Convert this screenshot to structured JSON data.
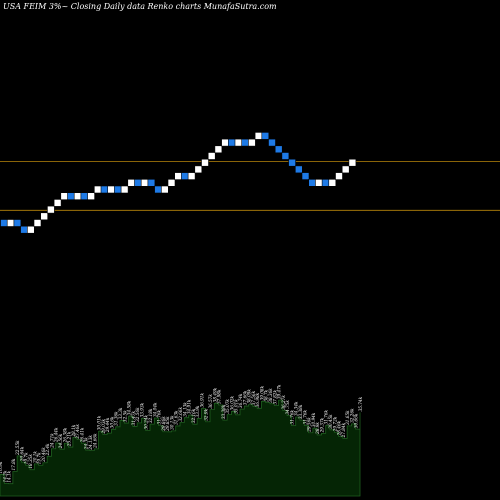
{
  "header": {
    "title": "USA FEIM 3%~  Closing Daily data  Renko  charts MunafaSutra.com"
  },
  "colors": {
    "background": "#000000",
    "up_brick": "#ffffff",
    "down_brick": "#1e7ae6",
    "brick_border": "#000000",
    "level_line": "#b8860b",
    "volume_fill": "#052505",
    "volume_line": "#1f5f1f",
    "label": "#ffffff"
  },
  "chart_data": {
    "type": "renko",
    "title": "USA FEIM 3%~  Closing Daily data  Renko  charts MunafaSutra.com",
    "bricks": [
      "down",
      "up",
      "down",
      "down",
      "up",
      "up",
      "up",
      "up",
      "up",
      "up",
      "down",
      "up",
      "down",
      "up",
      "up",
      "down",
      "up",
      "down",
      "up",
      "up",
      "down",
      "up",
      "down",
      "down",
      "up",
      "up",
      "up",
      "down",
      "up",
      "up",
      "up",
      "up",
      "up",
      "up",
      "down",
      "up",
      "down",
      "up",
      "up",
      "down",
      "down",
      "down",
      "down",
      "down",
      "down",
      "down",
      "down",
      "up",
      "down",
      "up",
      "up",
      "up",
      "up"
    ],
    "levels": [
      0.35,
      0.32
    ],
    "volume_labels": [
      "16.9k",
      "14.2k",
      "14.1k",
      "17.8k",
      "22.55k",
      "20.64k",
      "19.7k",
      "18.35k",
      "20.1k",
      "19.7k",
      "20.46k",
      "22.4k",
      "24.71k",
      "26.44k",
      "24.56k",
      "26.38k",
      "25.21k",
      "28.1k",
      "27.46k",
      "26.41k",
      "24.3k",
      "24.13k",
      "24.66k",
      "30.01k",
      "29.03k",
      "29.44k",
      "30.6k",
      "31.36k",
      "33.3k",
      "32.5k",
      "34.58k",
      "31.47k",
      "32.56k",
      "33.93k",
      "30.24k",
      "32.18k",
      "34.04k",
      "31.76k",
      "29.86k",
      "29.85k",
      "30.13k",
      "31.63k",
      "32.66k",
      "34.13k",
      "34.91k",
      "32.16k",
      "33.9k",
      "36.91k",
      "32.9k",
      "36.57k",
      "38.49k",
      "37.98k",
      "33.38k",
      "35.07k",
      "36.02k",
      "35.01k",
      "36.74k",
      "37.66k",
      "38.09k",
      "37.56k",
      "36.98k",
      "39.08k",
      "38.7k",
      "38.36k",
      "37.82k",
      "39.47k",
      "36.27k",
      "34.75k",
      "31.76k",
      "34.34k",
      "33.38k",
      "31.76k",
      "29.56k",
      "30.94k",
      "28.9k",
      "29.37k",
      "31.76k",
      "30.45k",
      "29.72k",
      "28.46k",
      "27.84k",
      "31.65k",
      "32.26k",
      "30.66k",
      "35.74k"
    ]
  }
}
